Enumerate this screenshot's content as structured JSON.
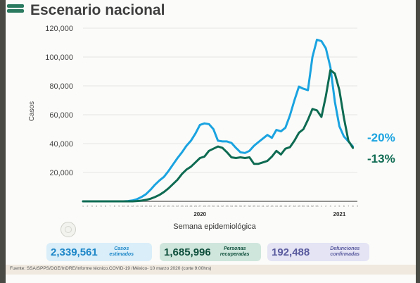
{
  "title": "Escenario nacional",
  "chart_data": {
    "type": "line",
    "title": "",
    "xlabel": "Semana epidemiológica",
    "ylabel": "Casos",
    "ylim": [
      0,
      120000
    ],
    "yticks": [
      20000,
      40000,
      60000,
      80000,
      100000,
      120000
    ],
    "ytick_labels": [
      "20,000",
      "40,000",
      "60,000",
      "80,000",
      "100,000",
      "120,000"
    ],
    "weeks_2020": [
      "1",
      "2",
      "3",
      "4",
      "5",
      "6",
      "7",
      "8",
      "9",
      "10",
      "11",
      "12",
      "13",
      "14",
      "15",
      "16",
      "17",
      "18",
      "19",
      "20",
      "21",
      "22",
      "23",
      "24",
      "25",
      "26",
      "27",
      "28",
      "29",
      "30",
      "31",
      "32",
      "33",
      "34",
      "35",
      "36",
      "37",
      "38",
      "39",
      "40",
      "41",
      "42",
      "43",
      "44",
      "45",
      "46",
      "47",
      "48",
      "49",
      "50",
      "51",
      "52",
      "53"
    ],
    "weeks_2021": [
      "1",
      "2",
      "3",
      "4",
      "5",
      "6",
      "7",
      "8",
      "9"
    ],
    "year_labels": [
      "2020",
      "2021"
    ],
    "series": [
      {
        "name": "Casos estimados",
        "color": "#1aa3e0",
        "values": [
          0,
          0,
          0,
          0,
          0,
          0,
          0,
          0,
          0,
          0,
          200,
          600,
          1500,
          3000,
          5000,
          8000,
          11500,
          14500,
          17000,
          21000,
          25500,
          30000,
          34000,
          38500,
          42000,
          47000,
          53000,
          54000,
          53500,
          50000,
          42000,
          41500,
          41500,
          40500,
          37000,
          34000,
          33500,
          35000,
          38500,
          41000,
          43500,
          46000,
          44000,
          49500,
          48500,
          51000,
          59500,
          70000,
          79500,
          78000,
          77000,
          100000,
          112000,
          111000,
          106000,
          93000,
          69000,
          52000,
          45000,
          41500,
          38000,
          0,
          0
        ],
        "trend_label": "-20%"
      },
      {
        "name": "Personas recuperadas",
        "color": "#0e6b52",
        "values": [
          0,
          0,
          0,
          0,
          0,
          0,
          0,
          0,
          0,
          0,
          0,
          0,
          200,
          500,
          1000,
          1800,
          3000,
          4500,
          6500,
          9000,
          12000,
          15000,
          19000,
          22000,
          24000,
          27000,
          30000,
          31000,
          35000,
          36500,
          38000,
          37000,
          34000,
          30500,
          30000,
          30500,
          30000,
          30500,
          26000,
          26000,
          27000,
          28000,
          31000,
          35000,
          32500,
          36500,
          37500,
          42000,
          47500,
          50000,
          56500,
          64000,
          63000,
          58500,
          73000,
          91000,
          88500,
          77000,
          58000,
          42000,
          37000,
          0,
          0
        ],
        "trend_label": "-13%"
      }
    ],
    "stats": [
      {
        "value": "2,339,561",
        "label": "Casos estimados"
      },
      {
        "value": "1,685,996",
        "label": "Personas recuperadas"
      },
      {
        "value": "192,488",
        "label": "Defunciones confirmadas"
      }
    ]
  },
  "source": "Fuente: SSA/SPPS/DGE/InDRE/Informe técnico.COVID-19 /México- 10 marzo 2020 (corte 9:00hrs)"
}
